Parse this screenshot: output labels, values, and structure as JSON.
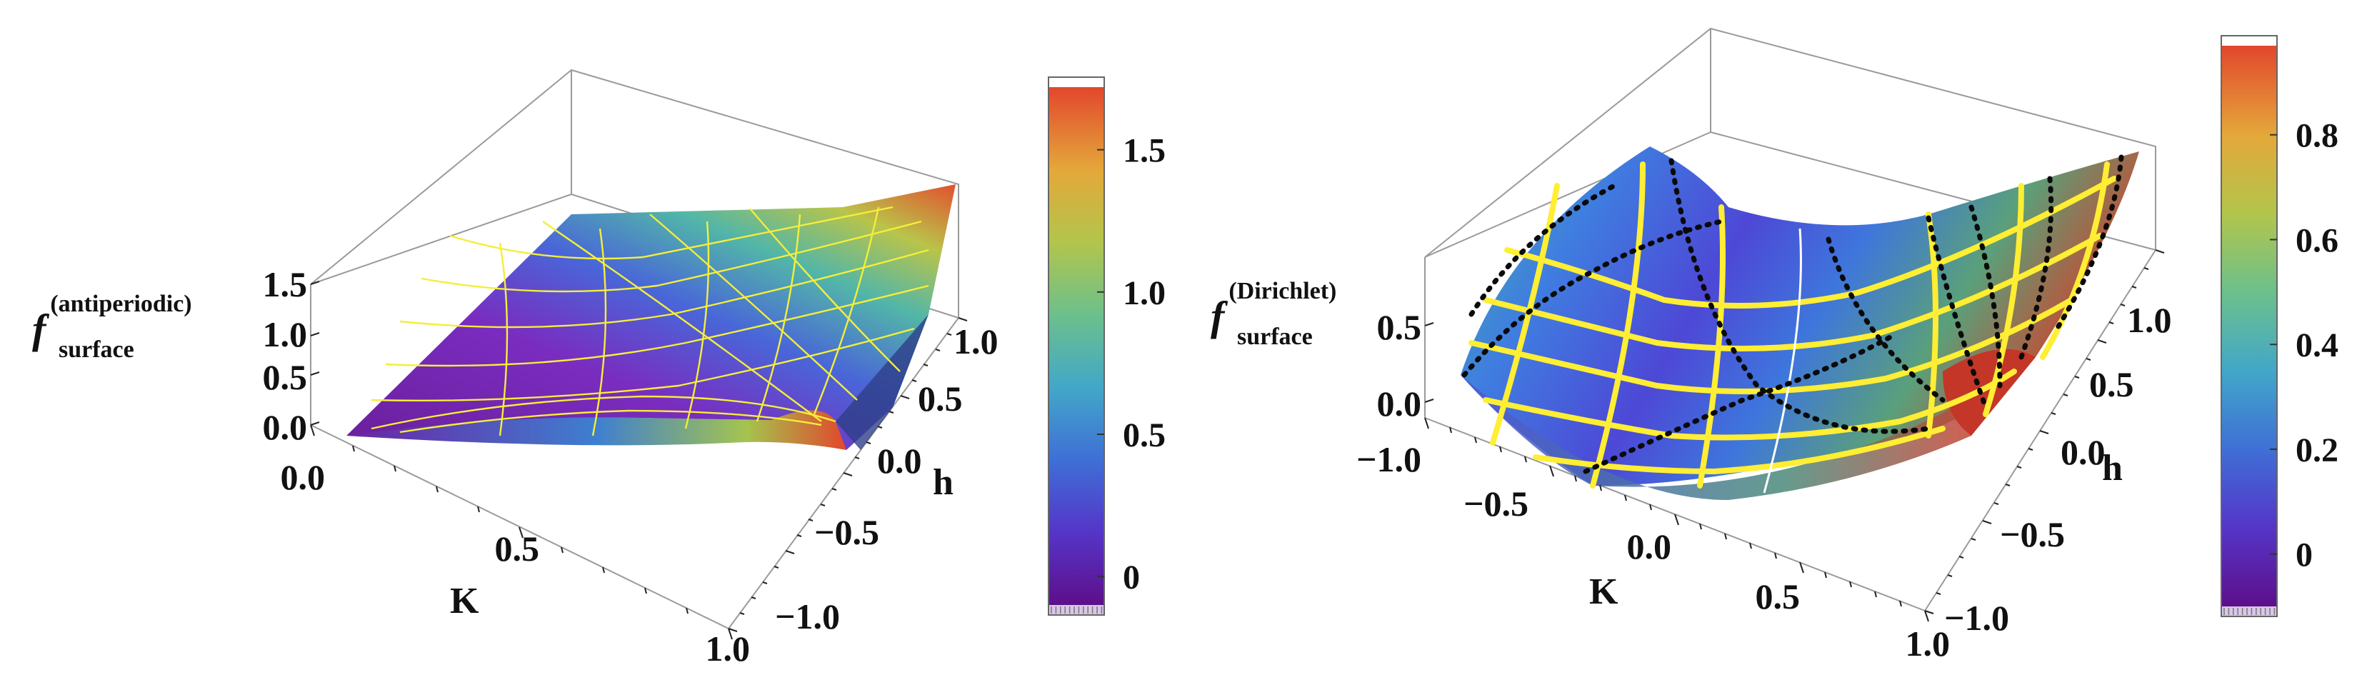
{
  "chart_data": [
    {
      "type": "surface3d",
      "z_label_base": "f",
      "z_label_superscript": "(antiperiodic)",
      "z_label_subscript": "surface",
      "xlabel": "K",
      "ylabel": "h",
      "x_ticks": [
        "0.0",
        "0.5",
        "1.0"
      ],
      "y_ticks": [
        "−1.0",
        "−0.5",
        "0.0",
        "0.5",
        "1.0"
      ],
      "z_ticks": [
        "0.0",
        "0.5",
        "1.0",
        "1.5"
      ],
      "xlim": [
        0,
        1
      ],
      "ylim": [
        -1,
        1
      ],
      "zlim": [
        0,
        1.7
      ],
      "colorbar": {
        "ticks": [
          "0",
          "0.5",
          "1.0",
          "1.5"
        ],
        "tick_values": [
          0,
          0.5,
          1.0,
          1.5
        ],
        "range": [
          -0.1,
          1.72
        ]
      },
      "contour_style": "thin yellow",
      "colormap": [
        "#5d0f8a",
        "#5535c8",
        "#3f6fd6",
        "#42a7c8",
        "#6cc08c",
        "#b2c54c",
        "#e4a83a",
        "#e2472d"
      ]
    },
    {
      "type": "surface3d",
      "z_label_base": "f",
      "z_label_superscript": "(Dirichlet)",
      "z_label_subscript": "surface",
      "xlabel": "K",
      "ylabel": "h",
      "x_ticks": [
        "−1.0",
        "−0.5",
        "0.0",
        "0.5",
        "1.0"
      ],
      "y_ticks": [
        "−1.0",
        "−0.5",
        "0.0",
        "0.5",
        "1.0"
      ],
      "z_ticks": [
        "0.0",
        "0.5"
      ],
      "xlim": [
        -1,
        1
      ],
      "ylim": [
        -1,
        1
      ],
      "zlim": [
        -0.1,
        0.95
      ],
      "colorbar": {
        "ticks": [
          "0",
          "0.2",
          "0.4",
          "0.6",
          "0.8"
        ],
        "tick_values": [
          0,
          0.2,
          0.4,
          0.6,
          0.8
        ],
        "range": [
          -0.1,
          0.97
        ]
      },
      "contour_style": "thick yellow with black dotted lines",
      "colormap": [
        "#5d0f8a",
        "#5535c8",
        "#3f6fd6",
        "#42a7c8",
        "#6cc08c",
        "#b2c54c",
        "#e4a83a",
        "#e2472d"
      ]
    }
  ]
}
